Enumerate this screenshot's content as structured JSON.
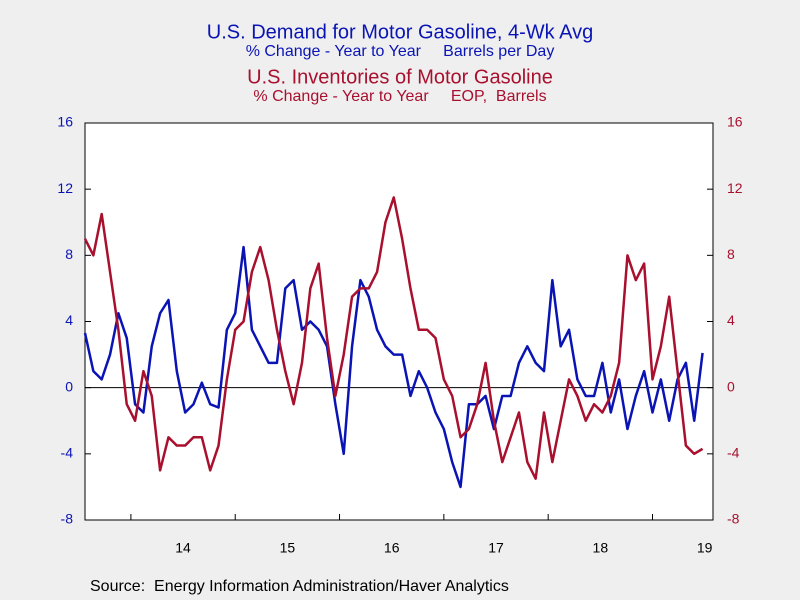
{
  "chart_data": {
    "type": "line",
    "titles": [
      {
        "title": "U.S. Demand for Motor Gasoline, 4-Wk Avg",
        "subtitle": "% Change - Year to Year     Barrels per Day"
      },
      {
        "title": "U.S. Inventories of Motor Gasoline",
        "subtitle": "% Change - Year to Year     EOP,  Barrels"
      }
    ],
    "source": "Source:  Energy Information Administration/Haver Analytics",
    "x": [
      2013.56,
      2013.64,
      2013.72,
      2013.8,
      2013.88,
      2013.96,
      2014.04,
      2014.12,
      2014.2,
      2014.28,
      2014.36,
      2014.44,
      2014.52,
      2014.6,
      2014.68,
      2014.76,
      2014.84,
      2014.92,
      2015.0,
      2015.08,
      2015.16,
      2015.24,
      2015.32,
      2015.4,
      2015.48,
      2015.56,
      2015.64,
      2015.72,
      2015.8,
      2015.88,
      2015.96,
      2016.04,
      2016.12,
      2016.2,
      2016.28,
      2016.36,
      2016.44,
      2016.52,
      2016.6,
      2016.68,
      2016.76,
      2016.84,
      2016.92,
      2017.0,
      2017.08,
      2017.16,
      2017.24,
      2017.32,
      2017.4,
      2017.48,
      2017.56,
      2017.64,
      2017.72,
      2017.8,
      2017.88,
      2017.96,
      2018.04,
      2018.12,
      2018.2,
      2018.28,
      2018.36,
      2018.44,
      2018.52,
      2018.6,
      2018.68,
      2018.76,
      2018.84,
      2018.92,
      2019.0,
      2019.08,
      2019.16,
      2019.24,
      2019.32,
      2019.4,
      2019.48
    ],
    "series": [
      {
        "color": "#0a14b4",
        "axis": "y",
        "values": [
          3.3,
          1.0,
          0.5,
          2.0,
          4.5,
          3.0,
          -1.0,
          -1.5,
          2.5,
          4.5,
          5.3,
          1.0,
          -1.5,
          -1.0,
          0.3,
          -1.0,
          -1.2,
          3.5,
          4.5,
          8.5,
          3.5,
          2.5,
          1.5,
          1.5,
          6.0,
          6.5,
          3.5,
          4.0,
          3.5,
          2.5,
          -1.0,
          -4.0,
          2.5,
          6.5,
          5.5,
          3.5,
          2.5,
          2.0,
          2.0,
          -0.5,
          1.0,
          0,
          -1.5,
          -2.5,
          -4.5,
          -6.0,
          -1.0,
          -1.0,
          -0.5,
          -2.5,
          -0.5,
          -0.5,
          1.5,
          2.5,
          1.5,
          1.0,
          6.5,
          2.5,
          3.5,
          0.5,
          -0.5,
          -0.5,
          1.5,
          -1.5,
          0.5,
          -2.5,
          -0.5,
          1.0,
          -1.5,
          0.5,
          -2.0,
          0.5,
          1.5,
          -2.0,
          2.1
        ]
      },
      {
        "color": "#a8102e",
        "axis": "y2",
        "values": [
          9.0,
          8.0,
          10.5,
          7.0,
          3.5,
          -1.0,
          -2.0,
          1.0,
          -0.5,
          -5.0,
          -3.0,
          -3.5,
          -3.5,
          -3.0,
          -3.0,
          -5.0,
          -3.5,
          0.5,
          3.5,
          4.0,
          7.0,
          8.5,
          6.5,
          3.5,
          1.0,
          -1.0,
          1.5,
          6.0,
          7.5,
          3.0,
          -0.5,
          2.0,
          5.5,
          6.0,
          6.0,
          7.0,
          10.0,
          11.5,
          9.0,
          6.0,
          3.5,
          3.5,
          3.0,
          0.5,
          -0.5,
          -3.0,
          -2.5,
          -1.0,
          1.5,
          -2.0,
          -4.5,
          -3.0,
          -1.5,
          -4.5,
          -5.5,
          -1.5,
          -4.5,
          -2.0,
          0.5,
          -0.5,
          -2.0,
          -1.0,
          -1.5,
          -0.5,
          1.5,
          8.0,
          6.5,
          7.5,
          0.5,
          2.5,
          5.5,
          1.0,
          -3.5,
          -4.0,
          -3.7
        ]
      }
    ],
    "xlim": [
      2013.56,
      2019.58
    ],
    "xticks": [
      2014,
      2015,
      2016,
      2017,
      2018,
      2019
    ],
    "xlabels": [
      {
        "value": 2014.5,
        "label": "14"
      },
      {
        "value": 2015.5,
        "label": "15"
      },
      {
        "value": 2016.5,
        "label": "16"
      },
      {
        "value": 2017.5,
        "label": "17"
      },
      {
        "value": 2018.5,
        "label": "18"
      },
      {
        "value": 2019.5,
        "label": "19"
      }
    ],
    "ylim": [
      -8,
      16
    ],
    "yticks": [
      -8,
      -4,
      0,
      4,
      8,
      12,
      16
    ],
    "y2lim": [
      -8,
      16
    ],
    "y2ticks": [
      -8,
      -4,
      0,
      4,
      8,
      12,
      16
    ],
    "zero_line": true
  }
}
